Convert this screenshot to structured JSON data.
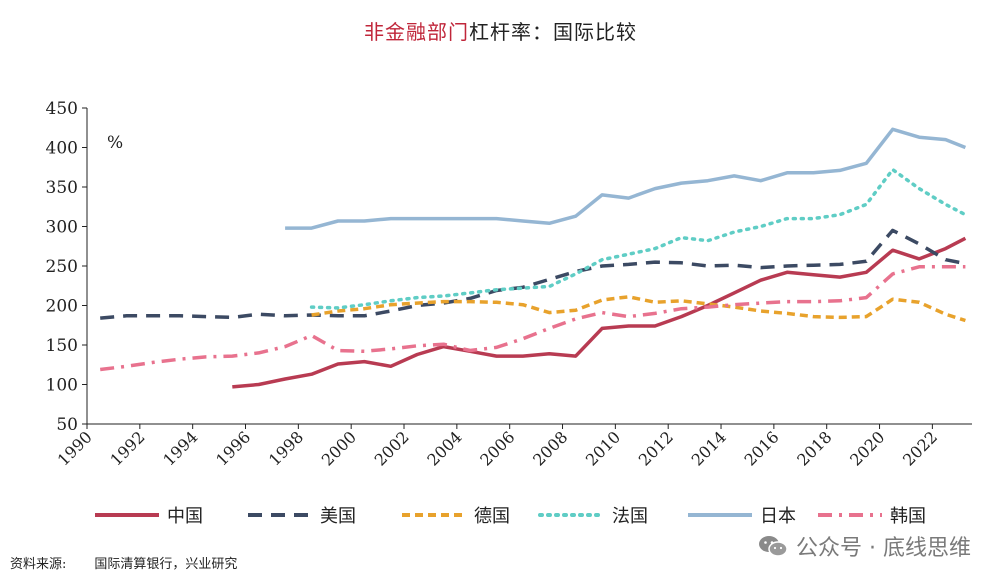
{
  "title": {
    "highlight": "非金融部门",
    "rest": "杠杆率：国际比较"
  },
  "source": {
    "label": "资料来源:",
    "text": "国际清算银行，兴业研究"
  },
  "watermark": {
    "text": "公众号 · 底线思维"
  },
  "chart_data": {
    "type": "line",
    "unit_label": "%",
    "ylim": [
      50,
      450
    ],
    "yticks": [
      50,
      100,
      150,
      200,
      250,
      300,
      350,
      400,
      450
    ],
    "xlim": [
      1990,
      2023.5
    ],
    "xticks": [
      "1990",
      "1992",
      "1994",
      "1996",
      "1998",
      "2000",
      "2002",
      "2004",
      "2006",
      "2008",
      "2010",
      "2012",
      "2014",
      "2016",
      "2018",
      "2020",
      "2022"
    ],
    "grid": false,
    "legend_position": "bottom",
    "series": [
      {
        "name": "中国",
        "color": "#b83b52",
        "style": "solid",
        "x": [
          1995.5,
          1996.5,
          1997.5,
          1998.5,
          1999.5,
          2000.5,
          2001.5,
          2002.5,
          2003.5,
          2004.5,
          2005.5,
          2006.5,
          2007.5,
          2008.5,
          2009.5,
          2010.5,
          2011.5,
          2012.5,
          2013.5,
          2014.5,
          2015.5,
          2016.5,
          2017.5,
          2018.5,
          2019.5,
          2020.5,
          2021.5,
          2022.5,
          2023.25
        ],
        "y": [
          97,
          100,
          107,
          113,
          126,
          129,
          123,
          138,
          148,
          142,
          136,
          136,
          139,
          136,
          171,
          174,
          174,
          186,
          200,
          216,
          232,
          242,
          239,
          236,
          242,
          270,
          259,
          272,
          285
        ]
      },
      {
        "name": "美国",
        "color": "#3c4a63",
        "style": "dash",
        "x": [
          1990.5,
          1991.5,
          1992.5,
          1993.5,
          1994.5,
          1995.5,
          1996.5,
          1997.5,
          1998.5,
          1999.5,
          2000.5,
          2001.5,
          2002.5,
          2003.5,
          2004.5,
          2005.5,
          2006.5,
          2007.5,
          2008.5,
          2009.5,
          2010.5,
          2011.5,
          2012.5,
          2013.5,
          2014.5,
          2015.5,
          2016.5,
          2017.5,
          2018.5,
          2019.5,
          2020.5,
          2021.5,
          2022.5,
          2023.25
        ],
        "y": [
          184,
          187,
          187,
          187,
          186,
          185,
          189,
          187,
          188,
          187,
          187,
          193,
          200,
          203,
          209,
          219,
          223,
          233,
          243,
          250,
          252,
          255,
          254,
          250,
          251,
          248,
          250,
          251,
          252,
          256,
          295,
          278,
          258,
          253
        ]
      },
      {
        "name": "德国",
        "color": "#e8a22c",
        "style": "shortdash",
        "x": [
          1998.5,
          1999.5,
          2000.5,
          2001.5,
          2002.5,
          2003.5,
          2004.5,
          2005.5,
          2006.5,
          2007.5,
          2008.5,
          2009.5,
          2010.5,
          2011.5,
          2012.5,
          2013.5,
          2014.5,
          2015.5,
          2016.5,
          2017.5,
          2018.5,
          2019.5,
          2020.5,
          2021.5,
          2022.5,
          2023.25
        ],
        "y": [
          188,
          193,
          196,
          201,
          203,
          205,
          205,
          204,
          201,
          191,
          194,
          207,
          211,
          204,
          206,
          202,
          198,
          193,
          190,
          186,
          185,
          186,
          208,
          204,
          189,
          181
        ]
      },
      {
        "name": "法国",
        "color": "#5fcdc5",
        "style": "dot",
        "x": [
          1998.5,
          1999.5,
          2000.5,
          2001.5,
          2002.5,
          2003.5,
          2004.5,
          2005.5,
          2006.5,
          2007.5,
          2008.5,
          2009.5,
          2010.5,
          2011.5,
          2012.5,
          2013.5,
          2014.5,
          2015.5,
          2016.5,
          2017.5,
          2018.5,
          2019.5,
          2020.5,
          2021.5,
          2022.5,
          2023.25
        ],
        "y": [
          198,
          197,
          201,
          206,
          210,
          212,
          216,
          220,
          222,
          224,
          240,
          258,
          265,
          272,
          286,
          282,
          293,
          300,
          310,
          310,
          315,
          328,
          372,
          348,
          328,
          315
        ]
      },
      {
        "name": "日本",
        "color": "#95b6d3",
        "style": "solid",
        "x": [
          1997.5,
          1998.5,
          1999.5,
          2000.5,
          2001.5,
          2002.5,
          2003.5,
          2004.5,
          2005.5,
          2006.5,
          2007.5,
          2008.5,
          2009.5,
          2010.5,
          2011.5,
          2012.5,
          2013.5,
          2014.5,
          2015.5,
          2016.5,
          2017.5,
          2018.5,
          2019.5,
          2020.5,
          2021.5,
          2022.5,
          2023.25
        ],
        "y": [
          298,
          298,
          307,
          307,
          310,
          310,
          310,
          310,
          310,
          307,
          304,
          313,
          340,
          336,
          348,
          355,
          358,
          364,
          358,
          368,
          368,
          371,
          380,
          423,
          413,
          410,
          400
        ]
      },
      {
        "name": "韩国",
        "color": "#e8728e",
        "style": "dashdot",
        "x": [
          1990.5,
          1991.5,
          1992.5,
          1993.5,
          1994.5,
          1995.5,
          1996.5,
          1997.5,
          1998.5,
          1999.5,
          2000.5,
          2001.5,
          2002.5,
          2003.5,
          2004.5,
          2005.5,
          2006.5,
          2007.5,
          2008.5,
          2009.5,
          2010.5,
          2011.5,
          2012.5,
          2013.5,
          2014.5,
          2015.5,
          2016.5,
          2017.5,
          2018.5,
          2019.5,
          2020.5,
          2021.5,
          2022.5,
          2023.25
        ],
        "y": [
          119,
          123,
          128,
          132,
          135,
          136,
          140,
          148,
          162,
          143,
          142,
          145,
          149,
          151,
          143,
          147,
          158,
          171,
          183,
          191,
          186,
          190,
          196,
          198,
          201,
          203,
          205,
          205,
          206,
          210,
          240,
          249,
          249,
          249
        ]
      }
    ]
  }
}
